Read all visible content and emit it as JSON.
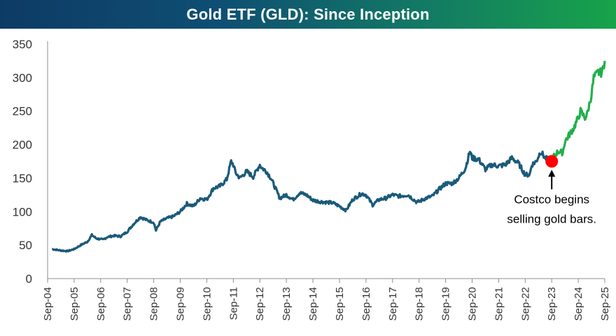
{
  "chart_data": {
    "type": "line",
    "title": "Gold ETF (GLD): Since Inception",
    "xlabel": "",
    "ylabel": "",
    "ylim": [
      0,
      350
    ],
    "yticks": [
      0,
      50,
      100,
      150,
      200,
      250,
      300,
      350
    ],
    "xticks": [
      "Sep-04",
      "Sep-05",
      "Sep-06",
      "Sep-07",
      "Sep-08",
      "Sep-09",
      "Sep-10",
      "Sep-11",
      "Sep-12",
      "Sep-13",
      "Sep-14",
      "Sep-15",
      "Sep-16",
      "Sep-17",
      "Sep-18",
      "Sep-19",
      "Sep-20",
      "Sep-21",
      "Sep-22",
      "Sep-23",
      "Sep-24",
      "Sep-25"
    ],
    "grid": false,
    "legend": "none",
    "series": [
      {
        "color": "#1a5a7a",
        "x": [
          "2004-11",
          "2005-03",
          "2005-06",
          "2005-09",
          "2005-12",
          "2006-03",
          "2006-05",
          "2006-07",
          "2006-10",
          "2006-12",
          "2007-03",
          "2007-06",
          "2007-09",
          "2007-12",
          "2008-03",
          "2008-06",
          "2008-09",
          "2008-10",
          "2008-12",
          "2009-03",
          "2009-06",
          "2009-09",
          "2009-12",
          "2010-03",
          "2010-06",
          "2010-09",
          "2010-12",
          "2011-03",
          "2011-06",
          "2011-08",
          "2011-09",
          "2011-10",
          "2011-12",
          "2012-03",
          "2012-06",
          "2012-09",
          "2012-10",
          "2012-12",
          "2013-02",
          "2013-04",
          "2013-06",
          "2013-09",
          "2013-12",
          "2014-03",
          "2014-06",
          "2014-09",
          "2014-12",
          "2015-03",
          "2015-06",
          "2015-09",
          "2015-12",
          "2016-03",
          "2016-07",
          "2016-09",
          "2016-12",
          "2017-03",
          "2017-06",
          "2017-09",
          "2017-12",
          "2018-04",
          "2018-08",
          "2018-09",
          "2018-12",
          "2019-03",
          "2019-06",
          "2019-09",
          "2019-12",
          "2020-03",
          "2020-06",
          "2020-08",
          "2020-09",
          "2020-12",
          "2021-03",
          "2021-06",
          "2021-09",
          "2021-12",
          "2022-03",
          "2022-06",
          "2022-09",
          "2022-11",
          "2022-12",
          "2023-02",
          "2023-04",
          "2023-06",
          "2023-09"
        ],
        "values": [
          44,
          42,
          41,
          44,
          50,
          55,
          65,
          60,
          58,
          62,
          64,
          63,
          70,
          82,
          92,
          87,
          84,
          72,
          85,
          90,
          93,
          100,
          112,
          108,
          120,
          118,
          135,
          138,
          148,
          175,
          170,
          158,
          150,
          160,
          152,
          170,
          165,
          160,
          150,
          135,
          120,
          125,
          118,
          128,
          125,
          117,
          115,
          114,
          113,
          108,
          102,
          118,
          127,
          125,
          110,
          118,
          120,
          125,
          123,
          125,
          114,
          115,
          120,
          123,
          133,
          142,
          142,
          150,
          165,
          190,
          180,
          178,
          163,
          170,
          168,
          170,
          180,
          172,
          155,
          155,
          170,
          175,
          190,
          180,
          175
        ]
      },
      {
        "color": "#21b04b",
        "x": [
          "2023-09",
          "2023-10",
          "2023-12",
          "2024-02",
          "2024-03",
          "2024-05",
          "2024-07",
          "2024-09",
          "2024-10",
          "2024-11",
          "2024-12",
          "2025-01",
          "2025-02",
          "2025-03",
          "2025-04",
          "2025-05",
          "2025-06",
          "2025-07",
          "2025-08",
          "2025-09"
        ],
        "values": [
          175,
          183,
          190,
          188,
          205,
          215,
          225,
          240,
          250,
          245,
          240,
          245,
          260,
          275,
          300,
          303,
          308,
          307,
          310,
          325
        ]
      }
    ],
    "annotations": [
      {
        "text_lines": [
          "Costco begins",
          "selling gold bars."
        ],
        "marker": {
          "x": "2023-09",
          "y": 175,
          "color": "#ff0000"
        },
        "arrow": true
      }
    ]
  }
}
